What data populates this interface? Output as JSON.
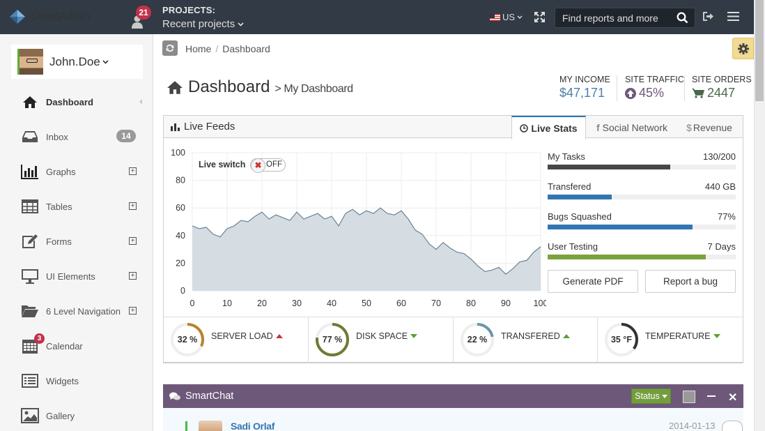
{
  "header": {
    "logo_text": "SmartAdmin",
    "notifications_count": "21",
    "projects_label": "PROJECTS:",
    "projects_value": "Recent projects",
    "language": "US",
    "search_placeholder": "Find reports and more"
  },
  "sidebar": {
    "username": "John.Doe",
    "items": [
      {
        "label": "Dashboard",
        "icon": "home-icon",
        "active": true
      },
      {
        "label": "Inbox",
        "icon": "inbox-icon",
        "badge": "14"
      },
      {
        "label": "Graphs",
        "icon": "bar-chart-icon",
        "expandable": true
      },
      {
        "label": "Tables",
        "icon": "table-icon",
        "expandable": true
      },
      {
        "label": "Forms",
        "icon": "edit-icon",
        "expandable": true
      },
      {
        "label": "UI Elements",
        "icon": "monitor-icon",
        "expandable": true
      },
      {
        "label": "6 Level Navigation",
        "icon": "folder-open-icon",
        "expandable": true
      },
      {
        "label": "Calendar",
        "icon": "calendar-icon",
        "badge": "3"
      },
      {
        "label": "Widgets",
        "icon": "list-alt-icon"
      },
      {
        "label": "Gallery",
        "icon": "picture-icon"
      }
    ]
  },
  "breadcrumb": {
    "home": "Home",
    "current": "Dashboard"
  },
  "page": {
    "title": "Dashboard",
    "subtitle": "> My Dashboard"
  },
  "stats": [
    {
      "label": "MY INCOME",
      "value": "$47,171",
      "color": "#4d7ea8"
    },
    {
      "label": "SITE TRAFFIC",
      "value": "45%",
      "color": "#6e587a",
      "icon": "arrow-circle-up-icon"
    },
    {
      "label": "SITE ORDERS",
      "value": "2447",
      "color": "#496949",
      "icon": "shopping-cart-icon"
    }
  ],
  "widget": {
    "title": "Live Feeds",
    "tabs": [
      {
        "label": "Live Stats",
        "icon": "clock-icon",
        "active": true
      },
      {
        "label": "Social Network",
        "icon": "facebook-icon"
      },
      {
        "label": "Revenue",
        "icon": "dollar-icon"
      }
    ],
    "live_switch_label": "Live switch",
    "live_switch_state": "OFF",
    "progress": [
      {
        "label": "My Tasks",
        "value": "130/200",
        "fraction": 0.65,
        "color": "#474747"
      },
      {
        "label": "Transfered",
        "value": "440 GB",
        "fraction": 0.34,
        "color": "#3276b1"
      },
      {
        "label": "Bugs Squashed",
        "value": "77%",
        "fraction": 0.77,
        "color": "#3276b1"
      },
      {
        "label": "User Testing",
        "value": "7 Days",
        "fraction": 0.84,
        "color": "#7ba33d"
      }
    ],
    "buttons": {
      "generate_pdf": "Generate PDF",
      "report_bug": "Report a bug"
    },
    "gauges": [
      {
        "value": "32 %",
        "label": "SERVER LOAD",
        "fraction": 0.32,
        "color": "#b5852c",
        "trend": "up",
        "trend_color": "#c23b3b"
      },
      {
        "value": "77 %",
        "label": "DISK SPACE",
        "fraction": 0.77,
        "color": "#6f7a35",
        "trend": "down",
        "trend_color": "#57a33b"
      },
      {
        "value": "22 %",
        "label": "TRANSFERED",
        "fraction": 0.22,
        "color": "#6b96a8",
        "trend": "up",
        "trend_color": "#57a33b"
      },
      {
        "value": "35 °F",
        "label": "TEMPERATURE",
        "fraction": 0.35,
        "color": "#333333",
        "trend": "down",
        "trend_color": "#57a33b"
      }
    ]
  },
  "chart_data": {
    "type": "area",
    "x_ticks": [
      "0",
      "10",
      "20",
      "30",
      "40",
      "50",
      "60",
      "70",
      "80",
      "90",
      "100"
    ],
    "y_ticks": [
      "0",
      "20",
      "40",
      "60",
      "80",
      "100"
    ],
    "xlim": [
      0,
      100
    ],
    "ylim": [
      0,
      100
    ],
    "grid": true,
    "x": [
      0,
      2,
      4,
      6,
      8,
      10,
      12,
      14,
      16,
      18,
      20,
      22,
      24,
      26,
      28,
      30,
      32,
      34,
      36,
      38,
      40,
      42,
      44,
      46,
      48,
      50,
      52,
      54,
      56,
      58,
      60,
      62,
      64,
      66,
      68,
      70,
      72,
      74,
      76,
      78,
      80,
      82,
      84,
      86,
      88,
      90,
      92,
      94,
      96,
      98,
      100
    ],
    "y": [
      47,
      45,
      46,
      41,
      39,
      45,
      47,
      51,
      50,
      54,
      57,
      52,
      55,
      53,
      51,
      57,
      52,
      54,
      56,
      52,
      54,
      47,
      56,
      59,
      55,
      58,
      56,
      60,
      56,
      55,
      58,
      52,
      44,
      41,
      34,
      30,
      35,
      31,
      28,
      27,
      23,
      18,
      14,
      15,
      17,
      12,
      16,
      21,
      22,
      28,
      32
    ],
    "fill_color": "#d5dde3",
    "line_color": "#6a8393"
  },
  "chat": {
    "title": "SmartChat",
    "status_label": "Status",
    "message": {
      "name": "Sadi Orlaf",
      "date": "2014-01-13"
    }
  }
}
